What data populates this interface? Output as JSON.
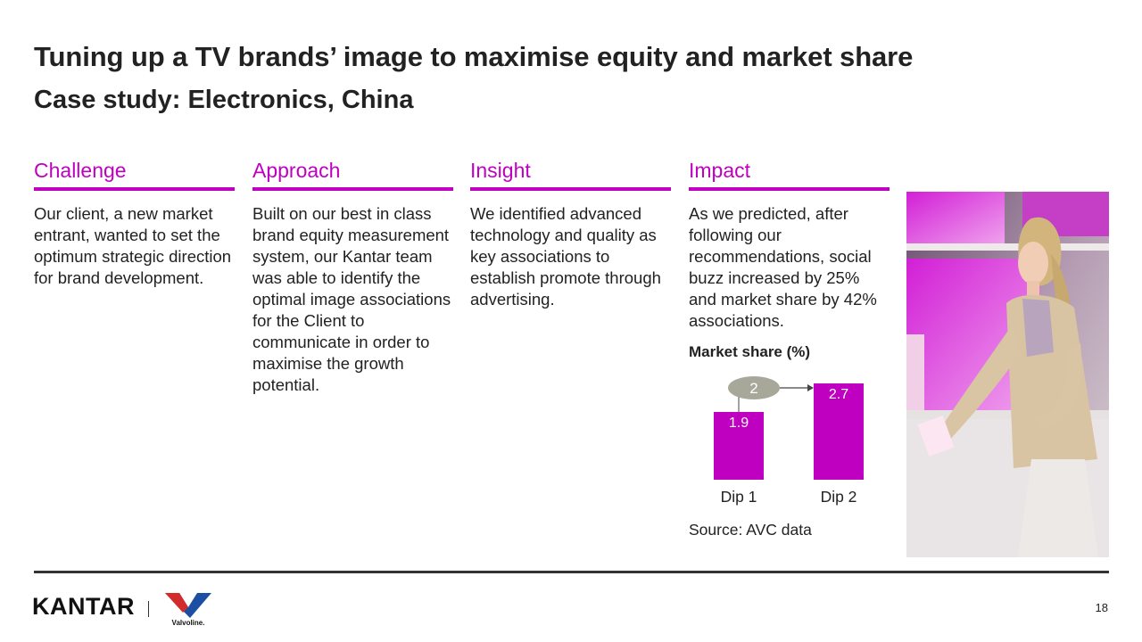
{
  "slide": {
    "title": "Tuning up a TV brands’ image to maximise equity and market share",
    "subtitle": "Case study: Electronics, China",
    "accent_color": "#c000c0"
  },
  "columns": [
    {
      "heading": "Challenge",
      "body": "Our client, a new market entrant, wanted to set the optimum strategic direction for brand development."
    },
    {
      "heading": "Approach",
      "body": "Built on our best in class brand equity measurement system, our Kantar team was able to identify the optimal image associations for the Client to communicate in order to maximise the growth potential."
    },
    {
      "heading": "Insight",
      "body": "We identified advanced technology and quality as key associations to establish promote through advertising."
    },
    {
      "heading": "Impact",
      "body": "As we predicted, after following our recommendations, social buzz increased by 25% and market share by 42% associations."
    }
  ],
  "chart_data": {
    "type": "bar",
    "title": "Market share (%)",
    "categories": [
      "Dip 1",
      "Dip 2"
    ],
    "values": [
      1.9,
      2.7
    ],
    "value_labels": [
      "1.9",
      "2.7"
    ],
    "bar_color": "#c000c0",
    "annotation": {
      "label": "2",
      "color": "#a8a89a"
    },
    "ylim": [
      0,
      2.9
    ],
    "grid": false
  },
  "source": "Source: AVC data",
  "photo": {
    "icon": "shopper-tv-store-photo"
  },
  "footer": {
    "kantar_logo": "KANTAR",
    "valvoline_logo": "Valvoline.",
    "page_number": "18"
  }
}
